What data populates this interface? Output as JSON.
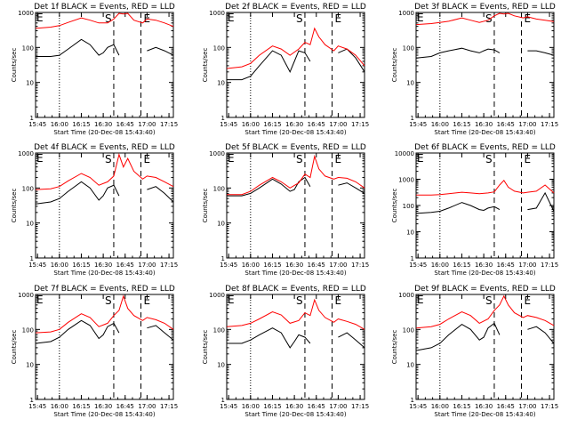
{
  "figure": {
    "xlabel": "Start Time (20-Dec-08 15:43:40)",
    "ylabel": "Counts/sec",
    "x_ticks": [
      "15:45",
      "16:00",
      "16:15",
      "16:30",
      "16:45",
      "17:00",
      "17:15"
    ],
    "y_ticks_default": [
      "1",
      "10",
      "100",
      "1000"
    ],
    "y_ticks_det6": [
      "1",
      "10",
      "100",
      "1000",
      "10000"
    ],
    "markers": {
      "S": "S",
      "E": "E",
      "top_left": "E"
    },
    "colors": {
      "events": "#000000",
      "lld": "#ff0000",
      "axis": "#000000"
    }
  },
  "chart_data": [
    {
      "type": "line",
      "title": "Det 1f BLACK = Events, RED = LLD",
      "xlabel": "Start Time (20-Dec-08 15:43:40)",
      "ylabel": "Counts/sec",
      "ylim": [
        1,
        1000
      ],
      "log_y": true,
      "series": [
        {
          "name": "Events",
          "x": [
            15.73,
            15.9,
            16.0,
            16.1,
            16.25,
            16.35,
            16.45,
            16.5,
            16.55,
            16.62,
            16.68,
            16.72,
            16.75,
            16.95,
            17.0,
            17.1,
            17.2,
            17.3
          ],
          "y": [
            55,
            55,
            60,
            90,
            170,
            120,
            60,
            70,
            100,
            120,
            60,
            null,
            null,
            null,
            80,
            100,
            80,
            60
          ]
        },
        {
          "name": "LLD",
          "x": [
            15.73,
            15.9,
            16.0,
            16.1,
            16.25,
            16.35,
            16.45,
            16.55,
            16.62,
            16.68,
            16.73,
            16.78,
            16.85,
            16.95,
            17.0,
            17.1,
            17.2,
            17.3
          ],
          "y": [
            350,
            380,
            420,
            520,
            700,
            600,
            500,
            500,
            650,
            1500,
            900,
            1200,
            600,
            500,
            650,
            600,
            500,
            400
          ]
        }
      ]
    },
    {
      "type": "line",
      "title": "Det 2f BLACK = Events, RED = LLD",
      "xlabel": "Start Time (20-Dec-08 15:43:40)",
      "ylabel": "Counts/sec",
      "ylim": [
        1,
        1000
      ],
      "log_y": true,
      "series": [
        {
          "name": "Events",
          "x": [
            15.73,
            15.9,
            16.0,
            16.1,
            16.25,
            16.35,
            16.45,
            16.5,
            16.55,
            16.62,
            16.68,
            16.72,
            16.75,
            16.95,
            17.0,
            17.1,
            17.2,
            17.3
          ],
          "y": [
            12,
            12,
            15,
            30,
            80,
            60,
            20,
            40,
            80,
            70,
            40,
            null,
            null,
            null,
            70,
            90,
            50,
            20
          ]
        },
        {
          "name": "LLD",
          "x": [
            15.73,
            15.9,
            16.0,
            16.1,
            16.25,
            16.35,
            16.45,
            16.55,
            16.62,
            16.68,
            16.73,
            16.78,
            16.85,
            16.95,
            17.0,
            17.1,
            17.2,
            17.3
          ],
          "y": [
            25,
            28,
            35,
            60,
            110,
            90,
            60,
            90,
            140,
            120,
            350,
            200,
            120,
            80,
            110,
            90,
            60,
            30
          ]
        }
      ]
    },
    {
      "type": "line",
      "title": "Det 3f BLACK = Events, RED = LLD",
      "xlabel": "Start Time (20-Dec-08 15:43:40)",
      "ylabel": "Counts/sec",
      "ylim": [
        1,
        1000
      ],
      "log_y": true,
      "series": [
        {
          "name": "Events",
          "x": [
            15.73,
            15.9,
            16.0,
            16.1,
            16.25,
            16.35,
            16.45,
            16.5,
            16.55,
            16.62,
            16.68,
            16.72,
            16.75,
            16.95,
            17.0,
            17.1,
            17.2,
            17.3
          ],
          "y": [
            50,
            55,
            70,
            80,
            95,
            80,
            70,
            80,
            90,
            85,
            70,
            null,
            null,
            null,
            80,
            80,
            70,
            60
          ]
        },
        {
          "name": "LLD",
          "x": [
            15.73,
            15.9,
            16.0,
            16.1,
            16.25,
            16.35,
            16.45,
            16.55,
            16.62,
            16.68,
            16.73,
            16.78,
            16.85,
            16.95,
            17.0,
            17.1,
            17.2,
            17.3
          ],
          "y": [
            450,
            480,
            520,
            560,
            700,
            600,
            520,
            600,
            800,
            1100,
            900,
            1100,
            800,
            700,
            750,
            650,
            600,
            550
          ]
        }
      ]
    },
    {
      "type": "line",
      "title": "Det 4f BLACK = Events, RED = LLD",
      "xlabel": "Start Time (20-Dec-08 15:43:40)",
      "ylabel": "Counts/sec",
      "ylim": [
        1,
        1000
      ],
      "log_y": true,
      "series": [
        {
          "name": "Events",
          "x": [
            15.73,
            15.9,
            16.0,
            16.1,
            16.25,
            16.35,
            16.45,
            16.5,
            16.55,
            16.62,
            16.68,
            16.72,
            16.75,
            16.95,
            17.0,
            17.1,
            17.2,
            17.3
          ],
          "y": [
            35,
            40,
            50,
            80,
            150,
            100,
            45,
            60,
            100,
            120,
            60,
            null,
            null,
            null,
            90,
            110,
            70,
            40
          ]
        },
        {
          "name": "LLD",
          "x": [
            15.73,
            15.9,
            16.0,
            16.1,
            16.25,
            16.35,
            16.45,
            16.55,
            16.62,
            16.68,
            16.73,
            16.78,
            16.85,
            16.95,
            17.0,
            17.1,
            17.2,
            17.3
          ],
          "y": [
            90,
            95,
            110,
            160,
            260,
            200,
            120,
            150,
            220,
            900,
            400,
            700,
            300,
            180,
            220,
            200,
            150,
            110
          ]
        }
      ]
    },
    {
      "type": "line",
      "title": "Det 5f BLACK = Events, RED = LLD",
      "xlabel": "Start Time (20-Dec-08 15:43:40)",
      "ylabel": "Counts/sec",
      "ylim": [
        1,
        1000
      ],
      "log_y": true,
      "series": [
        {
          "name": "Events",
          "x": [
            15.73,
            15.9,
            16.0,
            16.1,
            16.25,
            16.35,
            16.45,
            16.5,
            16.55,
            16.62,
            16.68,
            16.72,
            16.75,
            16.95,
            17.0,
            17.1,
            17.2,
            17.3
          ],
          "y": [
            60,
            60,
            70,
            100,
            180,
            130,
            80,
            90,
            150,
            200,
            110,
            null,
            null,
            null,
            120,
            140,
            100,
            70
          ]
        },
        {
          "name": "LLD",
          "x": [
            15.73,
            15.9,
            16.0,
            16.1,
            16.25,
            16.35,
            16.45,
            16.55,
            16.62,
            16.68,
            16.73,
            16.78,
            16.85,
            16.95,
            17.0,
            17.1,
            17.2,
            17.3
          ],
          "y": [
            65,
            65,
            80,
            120,
            200,
            150,
            100,
            140,
            250,
            200,
            800,
            350,
            220,
            180,
            200,
            190,
            150,
            100
          ]
        }
      ]
    },
    {
      "type": "line",
      "title": "Det 6f BLACK = Events, RED = LLD",
      "xlabel": "Start Time (20-Dec-08 15:43:40)",
      "ylabel": "Counts/sec",
      "ylim": [
        1,
        10000
      ],
      "log_y": true,
      "series": [
        {
          "name": "Events",
          "x": [
            15.73,
            15.9,
            16.0,
            16.1,
            16.25,
            16.35,
            16.45,
            16.5,
            16.55,
            16.62,
            16.68,
            16.72,
            16.75,
            16.95,
            17.0,
            17.1,
            17.2,
            17.3
          ],
          "y": [
            50,
            55,
            60,
            80,
            130,
            100,
            70,
            65,
            80,
            90,
            70,
            null,
            null,
            null,
            70,
            80,
            300,
            60
          ]
        },
        {
          "name": "LLD",
          "x": [
            15.73,
            15.9,
            16.0,
            16.1,
            16.25,
            16.35,
            16.45,
            16.55,
            16.62,
            16.68,
            16.73,
            16.78,
            16.85,
            16.95,
            17.0,
            17.1,
            17.2,
            17.3
          ],
          "y": [
            250,
            250,
            260,
            280,
            320,
            300,
            280,
            300,
            330,
            600,
            900,
            500,
            350,
            300,
            320,
            350,
            600,
            300
          ]
        }
      ]
    },
    {
      "type": "line",
      "title": "Det 7f BLACK = Events, RED = LLD",
      "xlabel": "Start Time (20-Dec-08 15:43:40)",
      "ylabel": "Counts/sec",
      "ylim": [
        1,
        1000
      ],
      "log_y": true,
      "series": [
        {
          "name": "Events",
          "x": [
            15.73,
            15.9,
            16.0,
            16.1,
            16.25,
            16.35,
            16.45,
            16.5,
            16.55,
            16.62,
            16.68,
            16.72,
            16.75,
            16.95,
            17.0,
            17.1,
            17.2,
            17.3
          ],
          "y": [
            40,
            45,
            60,
            100,
            180,
            130,
            55,
            70,
            120,
            150,
            80,
            null,
            null,
            null,
            110,
            130,
            80,
            50
          ]
        },
        {
          "name": "LLD",
          "x": [
            15.73,
            15.9,
            16.0,
            16.1,
            16.25,
            16.35,
            16.45,
            16.55,
            16.62,
            16.68,
            16.73,
            16.78,
            16.85,
            16.95,
            17.0,
            17.1,
            17.2,
            17.3
          ],
          "y": [
            80,
            85,
            100,
            160,
            280,
            220,
            120,
            150,
            250,
            350,
            900,
            400,
            250,
            180,
            220,
            190,
            150,
            100
          ]
        }
      ]
    },
    {
      "type": "line",
      "title": "Det 8f BLACK = Events, RED = LLD",
      "xlabel": "Start Time (20-Dec-08 15:43:40)",
      "ylabel": "Counts/sec",
      "ylim": [
        1,
        1000
      ],
      "log_y": true,
      "series": [
        {
          "name": "Events",
          "x": [
            15.73,
            15.9,
            16.0,
            16.1,
            16.25,
            16.35,
            16.45,
            16.5,
            16.55,
            16.62,
            16.68,
            16.72,
            16.75,
            16.95,
            17.0,
            17.1,
            17.2,
            17.3
          ],
          "y": [
            40,
            40,
            50,
            70,
            110,
            80,
            30,
            45,
            70,
            60,
            40,
            null,
            null,
            null,
            60,
            80,
            50,
            30
          ]
        },
        {
          "name": "LLD",
          "x": [
            15.73,
            15.9,
            16.0,
            16.1,
            16.25,
            16.35,
            16.45,
            16.55,
            16.62,
            16.68,
            16.73,
            16.78,
            16.85,
            16.95,
            17.0,
            17.1,
            17.2,
            17.3
          ],
          "y": [
            120,
            130,
            150,
            200,
            320,
            260,
            150,
            180,
            300,
            250,
            700,
            350,
            220,
            160,
            200,
            170,
            140,
            100
          ]
        }
      ]
    },
    {
      "type": "line",
      "title": "Det 9f BLACK = Events, RED = LLD",
      "xlabel": "Start Time (20-Dec-08 15:43:40)",
      "ylabel": "Counts/sec",
      "ylim": [
        1,
        1000
      ],
      "log_y": true,
      "series": [
        {
          "name": "Events",
          "x": [
            15.73,
            15.9,
            16.0,
            16.1,
            16.25,
            16.35,
            16.45,
            16.5,
            16.55,
            16.62,
            16.68,
            16.72,
            16.75,
            16.95,
            17.0,
            17.1,
            17.2,
            17.3
          ],
          "y": [
            25,
            30,
            40,
            70,
            140,
            100,
            50,
            60,
            110,
            150,
            70,
            null,
            null,
            null,
            100,
            120,
            80,
            40
          ]
        },
        {
          "name": "LLD",
          "x": [
            15.73,
            15.9,
            16.0,
            16.1,
            16.25,
            16.35,
            16.45,
            16.55,
            16.62,
            16.68,
            16.73,
            16.78,
            16.85,
            16.95,
            17.0,
            17.1,
            17.2,
            17.3
          ],
          "y": [
            110,
            120,
            140,
            200,
            320,
            250,
            150,
            200,
            350,
            500,
            900,
            500,
            300,
            220,
            250,
            220,
            180,
            130
          ]
        }
      ]
    }
  ]
}
